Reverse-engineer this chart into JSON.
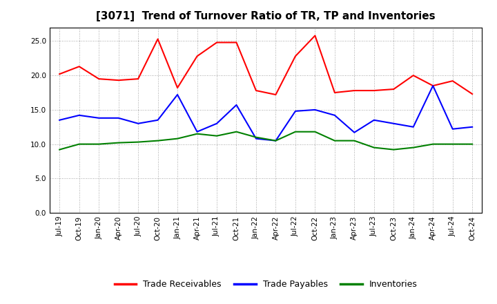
{
  "title": "[3071]  Trend of Turnover Ratio of TR, TP and Inventories",
  "x_labels": [
    "Jul-19",
    "Oct-19",
    "Jan-20",
    "Apr-20",
    "Jul-20",
    "Oct-20",
    "Jan-21",
    "Apr-21",
    "Jul-21",
    "Oct-21",
    "Jan-22",
    "Apr-22",
    "Jul-22",
    "Oct-22",
    "Jan-23",
    "Apr-23",
    "Jul-23",
    "Oct-23",
    "Jan-24",
    "Apr-24",
    "Jul-24",
    "Oct-24"
  ],
  "trade_receivables": [
    20.2,
    21.3,
    19.5,
    19.3,
    19.5,
    25.3,
    18.2,
    22.8,
    24.8,
    24.8,
    17.8,
    17.2,
    22.8,
    25.8,
    17.5,
    17.8,
    17.8,
    18.0,
    20.0,
    18.5,
    19.2,
    17.3
  ],
  "trade_payables": [
    13.5,
    14.2,
    13.8,
    13.8,
    13.0,
    13.5,
    17.2,
    11.8,
    13.0,
    15.7,
    10.8,
    10.5,
    14.8,
    15.0,
    14.2,
    11.7,
    13.5,
    13.0,
    12.5,
    18.5,
    12.2,
    12.5
  ],
  "inventories": [
    9.2,
    10.0,
    10.0,
    10.2,
    10.3,
    10.5,
    10.8,
    11.5,
    11.2,
    11.8,
    11.0,
    10.5,
    11.8,
    11.8,
    10.5,
    10.5,
    9.5,
    9.2,
    9.5,
    10.0,
    10.0,
    10.0
  ],
  "tr_color": "#FF0000",
  "tp_color": "#0000FF",
  "inv_color": "#008000",
  "ylim": [
    0,
    27
  ],
  "yticks": [
    0.0,
    5.0,
    10.0,
    15.0,
    20.0,
    25.0
  ],
  "background_color": "#FFFFFF",
  "grid_color": "#888888",
  "legend_labels": [
    "Trade Receivables",
    "Trade Payables",
    "Inventories"
  ],
  "legend_colors": [
    "#FF0000",
    "#0000FF",
    "#008000"
  ],
  "title_fontsize": 11,
  "tick_fontsize": 7.5,
  "legend_fontsize": 9
}
